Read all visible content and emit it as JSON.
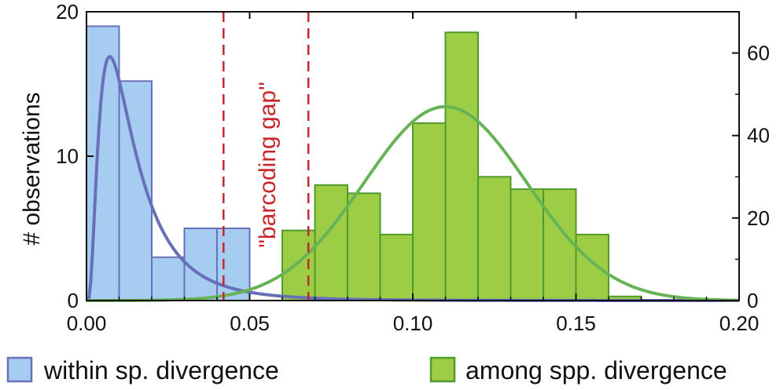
{
  "chart_data": {
    "type": "bar",
    "title": "",
    "xlabel": "",
    "ylabel": "# observations",
    "xlim": [
      0.0,
      0.2
    ],
    "ylim_left": [
      0,
      20
    ],
    "ylim_right": [
      0,
      70
    ],
    "x_ticks": [
      0.0,
      0.05,
      0.1,
      0.15,
      0.2
    ],
    "x_tick_labels": [
      "0.00",
      "0.05",
      "0.10",
      "0.15",
      "0.20"
    ],
    "y_left_ticks": [
      0,
      10,
      20
    ],
    "y_left_tick_labels": [
      "0",
      "10",
      "20"
    ],
    "y_right_ticks": [
      0,
      20,
      40,
      60
    ],
    "y_right_tick_labels": [
      "0",
      "20",
      "40",
      "60"
    ],
    "bin_width": 0.01,
    "grid": false,
    "legend_position": "bottom",
    "series": [
      {
        "name": "within sp. divergence",
        "axis": "left",
        "color": "#a6cdf1",
        "edge_color": "#6770b9",
        "bins": [
          0.0,
          0.01,
          0.02,
          0.03,
          0.04
        ],
        "values": [
          19,
          15.2,
          3,
          5,
          5
        ]
      },
      {
        "name": "among spp. divergence",
        "axis": "right",
        "color": "#9dcd45",
        "edge_color": "#4f9a2a",
        "bins": [
          0.06,
          0.07,
          0.08,
          0.09,
          0.1,
          0.11,
          0.12,
          0.13,
          0.14,
          0.15,
          0.16
        ],
        "values": [
          17,
          28,
          26,
          16,
          43,
          65,
          30,
          27,
          27,
          16,
          1
        ]
      }
    ],
    "fitted_curves": [
      {
        "series": "within sp. divergence",
        "color": "#6770b9",
        "distribution": "log-normal",
        "peak_x": 0.01,
        "peak_y": 16.9
      },
      {
        "series": "among spp. divergence",
        "color": "#68b356",
        "distribution": "normal",
        "mean": 0.11,
        "sd": 0.025,
        "peak_y": 47
      }
    ],
    "annotations": [
      {
        "text": "\"barcoding gap\"",
        "color": "#c8252c",
        "x_range": [
          0.042,
          0.068
        ]
      }
    ],
    "reference_lines": [
      {
        "x": 0.042,
        "style": "dashed",
        "color": "#c8252c"
      },
      {
        "x": 0.068,
        "style": "dashed",
        "color": "#c8252c"
      }
    ]
  }
}
